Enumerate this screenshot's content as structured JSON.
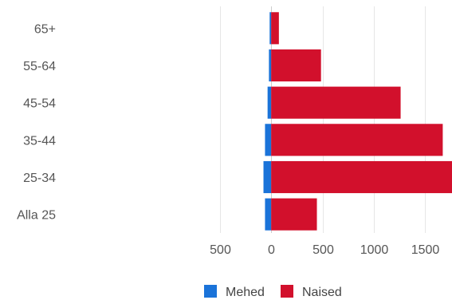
{
  "chart_data": {
    "type": "bar",
    "orientation": "horizontal",
    "layout": "diverging-population-pyramid",
    "categories": [
      "65+",
      "55-64",
      "45-54",
      "35-44",
      "25-34",
      "Alla 25"
    ],
    "series": [
      {
        "name": "Mehed",
        "values": [
          15,
          22,
          35,
          60,
          75,
          60
        ],
        "color": "#1a73d9"
      },
      {
        "name": "Naised",
        "values": [
          75,
          485,
          1260,
          1670,
          1760,
          445
        ],
        "color": "#d2102c"
      }
    ],
    "xticks": [
      -500,
      0,
      500,
      1000,
      1500
    ],
    "xtick_labels": [
      "500",
      "0",
      "500",
      "1000",
      "1500"
    ],
    "xlim": [
      -560,
      1760
    ],
    "title": "",
    "xlabel": "",
    "ylabel": "",
    "grid": true,
    "legend": "bottom"
  }
}
